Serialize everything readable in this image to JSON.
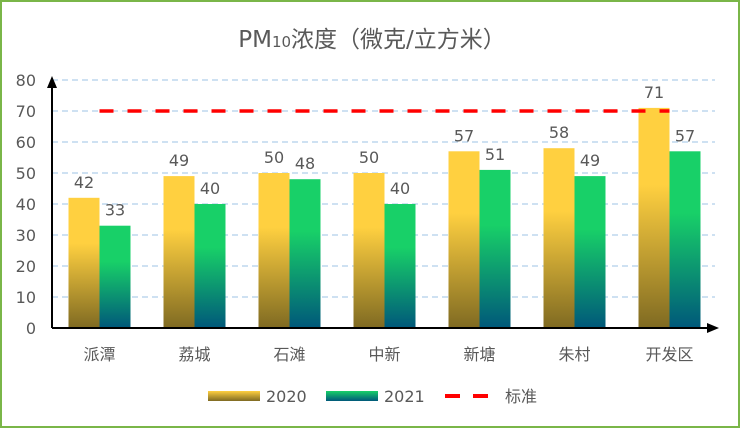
{
  "chart_data": {
    "type": "bar",
    "title_main": "PM",
    "title_sub": "10",
    "title_rest": "浓度（微克/立方米）",
    "categories": [
      "派潭",
      "荔城",
      "石滩",
      "中新",
      "新塘",
      "朱村",
      "开发区"
    ],
    "series": [
      {
        "name": "2020",
        "values": [
          42,
          49,
          50,
          50,
          57,
          58,
          71
        ],
        "color_top": "#FFD040",
        "color_bottom": "#7F6A22"
      },
      {
        "name": "2021",
        "values": [
          33,
          40,
          48,
          40,
          51,
          49,
          57
        ],
        "color_top": "#18D068",
        "color_bottom": "#00587A"
      }
    ],
    "reference_line": {
      "name": "标准",
      "value": 70,
      "color": "#FF0000",
      "style": "dashed"
    },
    "ylim": [
      0,
      80
    ],
    "yticks": [
      0,
      10,
      20,
      30,
      40,
      50,
      60,
      70,
      80
    ],
    "grid": true,
    "legend": "bottom",
    "data_labels": true
  }
}
